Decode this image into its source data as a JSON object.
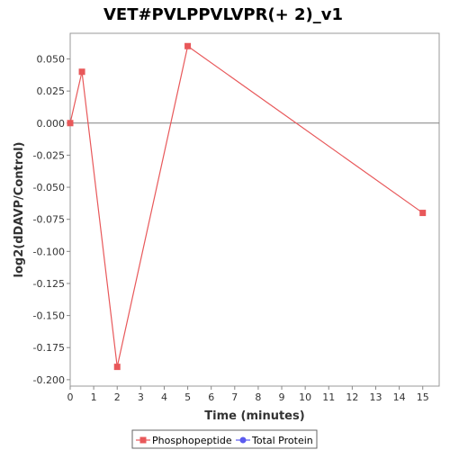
{
  "chart_data": {
    "type": "line",
    "title": "VET#PVLPPVLVPR(+ 2)_v1",
    "xlabel": "Time (minutes)",
    "ylabel": "log2(dDAVP/Control)",
    "xlim": [
      0,
      15.7
    ],
    "ylim": [
      -0.205,
      0.07
    ],
    "x_ticks": [
      0,
      1,
      2,
      3,
      4,
      5,
      6,
      7,
      8,
      9,
      10,
      11,
      12,
      13,
      14,
      15
    ],
    "y_ticks": [
      0.05,
      0.025,
      0.0,
      -0.025,
      -0.05,
      -0.075,
      -0.1,
      -0.125,
      -0.15,
      -0.175,
      -0.2
    ],
    "y_tick_labels": [
      "0.050",
      "0.025",
      "0.000",
      "-0.025",
      "-0.050",
      "-0.075",
      "-0.100",
      "-0.125",
      "-0.150",
      "-0.175",
      "-0.200"
    ],
    "reference_line_y": 0.0,
    "grid": false,
    "legend_position": "bottom-center",
    "series": [
      {
        "name": "Phosphopeptide",
        "color": "#e8585a",
        "marker": "square",
        "x": [
          0,
          0.5,
          2,
          5,
          15
        ],
        "y": [
          0.0,
          0.04,
          -0.19,
          0.06,
          -0.07
        ]
      },
      {
        "name": "Total Protein",
        "color": "#5b5bef",
        "marker": "circle",
        "x": [],
        "y": []
      }
    ]
  }
}
